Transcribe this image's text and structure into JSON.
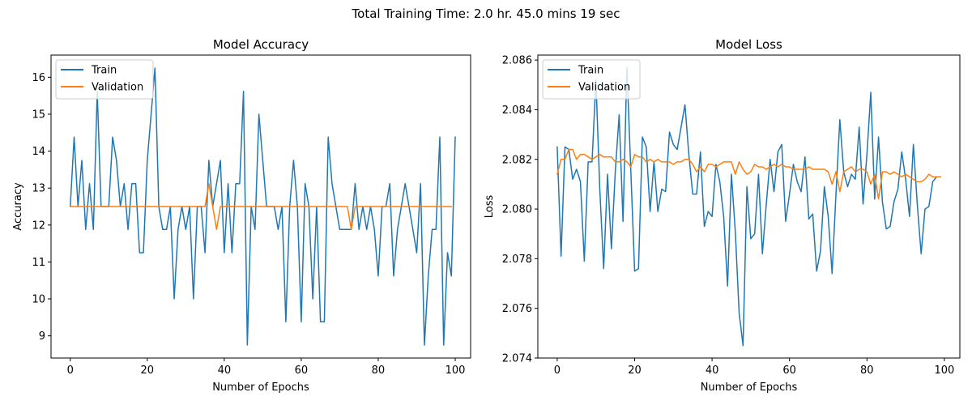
{
  "figure": {
    "suptitle": "Total Training Time: 2.0 hr. 45.0 mins 19 sec"
  },
  "colors": {
    "train": "#1f77b4",
    "validation": "#ff7f0e"
  },
  "chart_data": [
    {
      "type": "line",
      "title": "Model Accuracy",
      "xlabel": "Number of Epochs",
      "ylabel": "Accuracy",
      "xlim": [
        -5,
        104
      ],
      "ylim": [
        8.4,
        16.6
      ],
      "xticks": [
        0,
        20,
        40,
        60,
        80,
        100
      ],
      "yticks": [
        9,
        10,
        11,
        12,
        13,
        14,
        15,
        16
      ],
      "grid": false,
      "legend": "top-left",
      "series": [
        {
          "name": "Train",
          "values": [
            12.5,
            14.38,
            12.5,
            13.75,
            11.88,
            13.12,
            11.88,
            15.62,
            12.5,
            12.5,
            12.5,
            14.38,
            13.75,
            12.5,
            13.12,
            11.88,
            13.12,
            13.12,
            11.25,
            11.25,
            13.75,
            15.0,
            16.25,
            12.5,
            11.88,
            11.88,
            12.5,
            10.0,
            11.88,
            12.5,
            11.88,
            12.5,
            10.0,
            12.5,
            12.5,
            11.25,
            13.75,
            12.5,
            13.12,
            13.75,
            11.25,
            13.12,
            11.25,
            13.12,
            13.12,
            15.62,
            8.75,
            12.5,
            11.88,
            15.0,
            13.75,
            12.5,
            12.5,
            12.5,
            11.88,
            12.5,
            9.38,
            12.5,
            13.75,
            12.5,
            9.38,
            13.12,
            12.5,
            10.0,
            12.5,
            9.38,
            9.38,
            14.38,
            13.12,
            12.5,
            11.88,
            11.88,
            11.88,
            11.88,
            13.12,
            11.88,
            12.5,
            11.88,
            12.5,
            11.88,
            10.62,
            12.5,
            12.5,
            13.12,
            10.62,
            11.88,
            12.5,
            13.12,
            12.5,
            11.88,
            11.25,
            13.12,
            8.75,
            10.62,
            11.88,
            11.88,
            14.38,
            8.75,
            11.25,
            10.62,
            14.38
          ]
        },
        {
          "name": "Validation",
          "values": [
            12.5,
            12.5,
            12.5,
            12.5,
            12.5,
            12.5,
            12.5,
            12.5,
            12.5,
            12.5,
            12.5,
            12.5,
            12.5,
            12.5,
            12.5,
            12.5,
            12.5,
            12.5,
            12.5,
            12.5,
            12.5,
            12.5,
            12.5,
            12.5,
            12.5,
            12.5,
            12.5,
            12.5,
            12.5,
            12.5,
            12.5,
            12.5,
            12.5,
            12.5,
            12.5,
            12.5,
            13.12,
            12.5,
            11.88,
            12.5,
            12.5,
            12.5,
            12.5,
            12.5,
            12.5,
            12.5,
            12.5,
            12.5,
            12.5,
            12.5,
            12.5,
            12.5,
            12.5,
            12.5,
            12.5,
            12.5,
            12.5,
            12.5,
            12.5,
            12.5,
            12.5,
            12.5,
            12.5,
            12.5,
            12.5,
            12.5,
            12.5,
            12.5,
            12.5,
            12.5,
            12.5,
            12.5,
            12.5,
            11.88,
            12.5,
            12.5,
            12.5,
            12.5,
            12.5,
            12.5,
            12.5,
            12.5,
            12.5,
            12.5,
            12.5,
            12.5,
            12.5,
            12.5,
            12.5,
            12.5,
            12.5,
            12.5,
            12.5,
            12.5,
            12.5,
            12.5,
            12.5,
            12.5,
            12.5,
            12.5
          ]
        }
      ]
    },
    {
      "type": "line",
      "title": "Model Loss",
      "xlabel": "Number of Epochs",
      "ylabel": "Loss",
      "xlim": [
        -5,
        104
      ],
      "ylim": [
        2.074,
        2.0862
      ],
      "xticks": [
        0,
        20,
        40,
        60,
        80,
        100
      ],
      "yticks": [
        2.074,
        2.076,
        2.078,
        2.08,
        2.082,
        2.084,
        2.086
      ],
      "ytick_labels": [
        "2.074",
        "2.076",
        "2.078",
        "2.080",
        "2.082",
        "2.084",
        "2.086"
      ],
      "grid": false,
      "legend": "top-left",
      "series": [
        {
          "name": "Train",
          "values": [
            2.0825,
            2.0781,
            2.0825,
            2.0824,
            2.0812,
            2.0816,
            2.0811,
            2.0779,
            2.0819,
            2.0819,
            2.0852,
            2.0808,
            2.0776,
            2.0814,
            2.0784,
            2.0815,
            2.0838,
            2.0795,
            2.0857,
            2.0816,
            2.0775,
            2.0776,
            2.0829,
            2.0825,
            2.0799,
            2.0819,
            2.0799,
            2.0808,
            2.0807,
            2.0831,
            2.0826,
            2.0824,
            2.0833,
            2.0842,
            2.0822,
            2.0806,
            2.0806,
            2.0823,
            2.0793,
            2.0799,
            2.0797,
            2.0818,
            2.0811,
            2.0797,
            2.0769,
            2.0814,
            2.0791,
            2.0758,
            2.0745,
            2.0809,
            2.0788,
            2.079,
            2.0814,
            2.0782,
            2.0802,
            2.082,
            2.0807,
            2.0823,
            2.0826,
            2.0795,
            2.0806,
            2.0818,
            2.0811,
            2.0807,
            2.0821,
            2.0796,
            2.0798,
            2.0775,
            2.0783,
            2.0809,
            2.0797,
            2.0774,
            2.0806,
            2.0836,
            2.0815,
            2.0809,
            2.0814,
            2.0812,
            2.0833,
            2.0802,
            2.0822,
            2.0847,
            2.0804,
            2.0829,
            2.0803,
            2.0792,
            2.0793,
            2.0803,
            2.0808,
            2.0823,
            2.0812,
            2.0797,
            2.0826,
            2.0802,
            2.0782,
            2.08,
            2.0801,
            2.0811,
            2.0813,
            2.0813
          ]
        },
        {
          "name": "Validation",
          "values": [
            2.0814,
            2.082,
            2.082,
            2.0824,
            2.0824,
            2.082,
            2.0822,
            2.0822,
            2.0821,
            2.082,
            2.0821,
            2.0822,
            2.0821,
            2.0821,
            2.0821,
            2.0819,
            2.0819,
            2.082,
            2.0819,
            2.0817,
            2.0822,
            2.0821,
            2.0821,
            2.0819,
            2.082,
            2.0819,
            2.082,
            2.0819,
            2.0819,
            2.0819,
            2.0818,
            2.0819,
            2.0819,
            2.082,
            2.082,
            2.0818,
            2.0815,
            2.0817,
            2.0815,
            2.0818,
            2.0818,
            2.0817,
            2.0818,
            2.0819,
            2.0819,
            2.0819,
            2.0814,
            2.0819,
            2.0816,
            2.0814,
            2.0815,
            2.0818,
            2.0817,
            2.0817,
            2.0816,
            2.0817,
            2.0818,
            2.0817,
            2.0818,
            2.0817,
            2.0817,
            2.0816,
            2.0816,
            2.0816,
            2.0816,
            2.0817,
            2.0816,
            2.0816,
            2.0816,
            2.0816,
            2.0815,
            2.081,
            2.0815,
            2.0807,
            2.0815,
            2.0816,
            2.0817,
            2.0815,
            2.0816,
            2.0816,
            2.0815,
            2.081,
            2.0814,
            2.0804,
            2.0815,
            2.0815,
            2.0814,
            2.0815,
            2.0814,
            2.0813,
            2.0814,
            2.0813,
            2.0812,
            2.0811,
            2.0811,
            2.0812,
            2.0814,
            2.0813,
            2.0813,
            2.0813
          ]
        }
      ]
    }
  ]
}
